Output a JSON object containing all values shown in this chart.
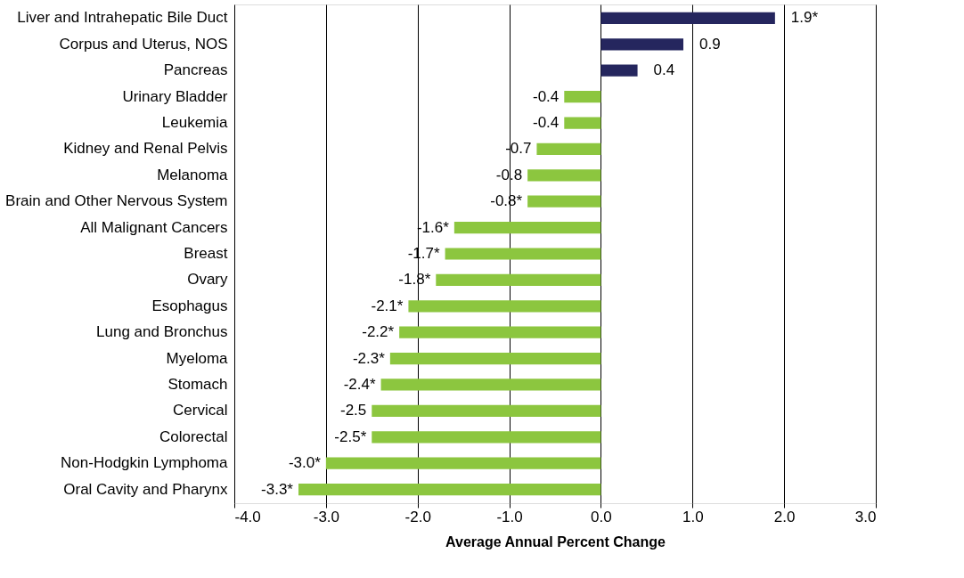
{
  "chart_data": {
    "type": "bar",
    "orientation": "horizontal",
    "xlabel": "Average Annual Percent Change",
    "categories": [
      "Liver and Intrahepatic Bile Duct",
      "Corpus and Uterus, NOS",
      "Pancreas",
      "Urinary Bladder",
      "Leukemia",
      "Kidney and Renal Pelvis",
      "Melanoma",
      "Brain and Other Nervous System",
      "All Malignant Cancers",
      "Breast",
      "Ovary",
      "Esophagus",
      "Lung and Bronchus",
      "Myeloma",
      "Stomach",
      "Cervical",
      "Colorectal",
      "Non-Hodgkin Lymphoma",
      "Oral Cavity and Pharynx"
    ],
    "values": [
      1.9,
      0.9,
      0.4,
      -0.4,
      -0.4,
      -0.7,
      -0.8,
      -0.8,
      -1.6,
      -1.7,
      -1.8,
      -2.1,
      -2.2,
      -2.3,
      -2.4,
      -2.5,
      -2.5,
      -3.0,
      -3.3
    ],
    "value_labels": [
      "1.9*",
      "0.9",
      "0.4",
      "-0.4",
      "-0.4",
      "-0.7",
      "-0.8",
      "-0.8*",
      "-1.6*",
      "-1.7*",
      "-1.8*",
      "-2.1*",
      "-2.2*",
      "-2.3*",
      "-2.4*",
      "-2.5",
      "-2.5*",
      "-3.0*",
      "-3.3*"
    ],
    "colors": [
      "#25265e",
      "#25265e",
      "#25265e",
      "#8cc63f",
      "#8cc63f",
      "#8cc63f",
      "#8cc63f",
      "#8cc63f",
      "#8cc63f",
      "#8cc63f",
      "#8cc63f",
      "#8cc63f",
      "#8cc63f",
      "#8cc63f",
      "#8cc63f",
      "#8cc63f",
      "#8cc63f",
      "#8cc63f",
      "#8cc63f"
    ],
    "xlim": [
      -4,
      3
    ],
    "xticks": [
      {
        "value": -4,
        "label": "-4.0"
      },
      {
        "value": -3,
        "label": "-3.0"
      },
      {
        "value": -2,
        "label": "-2.0"
      },
      {
        "value": -1,
        "label": "-1.0"
      },
      {
        "value": 0,
        "label": "0.0"
      },
      {
        "value": 1,
        "label": "1.0"
      },
      {
        "value": 2,
        "label": "2.0"
      },
      {
        "value": 3,
        "label": "3.0"
      }
    ],
    "grid": "x"
  }
}
